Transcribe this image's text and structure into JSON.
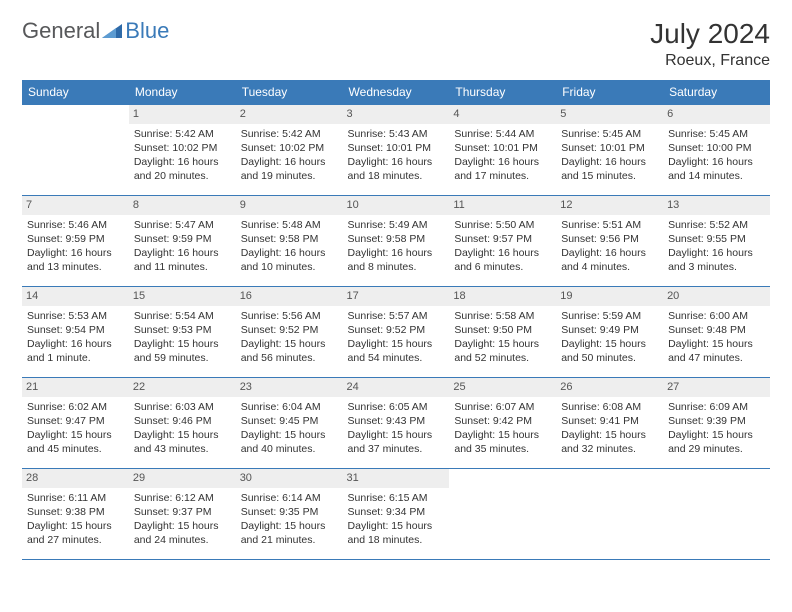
{
  "brand": {
    "part1": "General",
    "part2": "Blue"
  },
  "title": "July 2024",
  "location": "Roeux, France",
  "colors": {
    "header_bg": "#3a7ab8",
    "daynum_bg": "#eeeeee",
    "border": "#3a7ab8",
    "text": "#333333",
    "logo_gray": "#57585a"
  },
  "weekdays": [
    "Sunday",
    "Monday",
    "Tuesday",
    "Wednesday",
    "Thursday",
    "Friday",
    "Saturday"
  ],
  "weeks": [
    [
      null,
      {
        "n": "1",
        "sr": "Sunrise: 5:42 AM",
        "ss": "Sunset: 10:02 PM",
        "d1": "Daylight: 16 hours",
        "d2": "and 20 minutes."
      },
      {
        "n": "2",
        "sr": "Sunrise: 5:42 AM",
        "ss": "Sunset: 10:02 PM",
        "d1": "Daylight: 16 hours",
        "d2": "and 19 minutes."
      },
      {
        "n": "3",
        "sr": "Sunrise: 5:43 AM",
        "ss": "Sunset: 10:01 PM",
        "d1": "Daylight: 16 hours",
        "d2": "and 18 minutes."
      },
      {
        "n": "4",
        "sr": "Sunrise: 5:44 AM",
        "ss": "Sunset: 10:01 PM",
        "d1": "Daylight: 16 hours",
        "d2": "and 17 minutes."
      },
      {
        "n": "5",
        "sr": "Sunrise: 5:45 AM",
        "ss": "Sunset: 10:01 PM",
        "d1": "Daylight: 16 hours",
        "d2": "and 15 minutes."
      },
      {
        "n": "6",
        "sr": "Sunrise: 5:45 AM",
        "ss": "Sunset: 10:00 PM",
        "d1": "Daylight: 16 hours",
        "d2": "and 14 minutes."
      }
    ],
    [
      {
        "n": "7",
        "sr": "Sunrise: 5:46 AM",
        "ss": "Sunset: 9:59 PM",
        "d1": "Daylight: 16 hours",
        "d2": "and 13 minutes."
      },
      {
        "n": "8",
        "sr": "Sunrise: 5:47 AM",
        "ss": "Sunset: 9:59 PM",
        "d1": "Daylight: 16 hours",
        "d2": "and 11 minutes."
      },
      {
        "n": "9",
        "sr": "Sunrise: 5:48 AM",
        "ss": "Sunset: 9:58 PM",
        "d1": "Daylight: 16 hours",
        "d2": "and 10 minutes."
      },
      {
        "n": "10",
        "sr": "Sunrise: 5:49 AM",
        "ss": "Sunset: 9:58 PM",
        "d1": "Daylight: 16 hours",
        "d2": "and 8 minutes."
      },
      {
        "n": "11",
        "sr": "Sunrise: 5:50 AM",
        "ss": "Sunset: 9:57 PM",
        "d1": "Daylight: 16 hours",
        "d2": "and 6 minutes."
      },
      {
        "n": "12",
        "sr": "Sunrise: 5:51 AM",
        "ss": "Sunset: 9:56 PM",
        "d1": "Daylight: 16 hours",
        "d2": "and 4 minutes."
      },
      {
        "n": "13",
        "sr": "Sunrise: 5:52 AM",
        "ss": "Sunset: 9:55 PM",
        "d1": "Daylight: 16 hours",
        "d2": "and 3 minutes."
      }
    ],
    [
      {
        "n": "14",
        "sr": "Sunrise: 5:53 AM",
        "ss": "Sunset: 9:54 PM",
        "d1": "Daylight: 16 hours",
        "d2": "and 1 minute."
      },
      {
        "n": "15",
        "sr": "Sunrise: 5:54 AM",
        "ss": "Sunset: 9:53 PM",
        "d1": "Daylight: 15 hours",
        "d2": "and 59 minutes."
      },
      {
        "n": "16",
        "sr": "Sunrise: 5:56 AM",
        "ss": "Sunset: 9:52 PM",
        "d1": "Daylight: 15 hours",
        "d2": "and 56 minutes."
      },
      {
        "n": "17",
        "sr": "Sunrise: 5:57 AM",
        "ss": "Sunset: 9:52 PM",
        "d1": "Daylight: 15 hours",
        "d2": "and 54 minutes."
      },
      {
        "n": "18",
        "sr": "Sunrise: 5:58 AM",
        "ss": "Sunset: 9:50 PM",
        "d1": "Daylight: 15 hours",
        "d2": "and 52 minutes."
      },
      {
        "n": "19",
        "sr": "Sunrise: 5:59 AM",
        "ss": "Sunset: 9:49 PM",
        "d1": "Daylight: 15 hours",
        "d2": "and 50 minutes."
      },
      {
        "n": "20",
        "sr": "Sunrise: 6:00 AM",
        "ss": "Sunset: 9:48 PM",
        "d1": "Daylight: 15 hours",
        "d2": "and 47 minutes."
      }
    ],
    [
      {
        "n": "21",
        "sr": "Sunrise: 6:02 AM",
        "ss": "Sunset: 9:47 PM",
        "d1": "Daylight: 15 hours",
        "d2": "and 45 minutes."
      },
      {
        "n": "22",
        "sr": "Sunrise: 6:03 AM",
        "ss": "Sunset: 9:46 PM",
        "d1": "Daylight: 15 hours",
        "d2": "and 43 minutes."
      },
      {
        "n": "23",
        "sr": "Sunrise: 6:04 AM",
        "ss": "Sunset: 9:45 PM",
        "d1": "Daylight: 15 hours",
        "d2": "and 40 minutes."
      },
      {
        "n": "24",
        "sr": "Sunrise: 6:05 AM",
        "ss": "Sunset: 9:43 PM",
        "d1": "Daylight: 15 hours",
        "d2": "and 37 minutes."
      },
      {
        "n": "25",
        "sr": "Sunrise: 6:07 AM",
        "ss": "Sunset: 9:42 PM",
        "d1": "Daylight: 15 hours",
        "d2": "and 35 minutes."
      },
      {
        "n": "26",
        "sr": "Sunrise: 6:08 AM",
        "ss": "Sunset: 9:41 PM",
        "d1": "Daylight: 15 hours",
        "d2": "and 32 minutes."
      },
      {
        "n": "27",
        "sr": "Sunrise: 6:09 AM",
        "ss": "Sunset: 9:39 PM",
        "d1": "Daylight: 15 hours",
        "d2": "and 29 minutes."
      }
    ],
    [
      {
        "n": "28",
        "sr": "Sunrise: 6:11 AM",
        "ss": "Sunset: 9:38 PM",
        "d1": "Daylight: 15 hours",
        "d2": "and 27 minutes."
      },
      {
        "n": "29",
        "sr": "Sunrise: 6:12 AM",
        "ss": "Sunset: 9:37 PM",
        "d1": "Daylight: 15 hours",
        "d2": "and 24 minutes."
      },
      {
        "n": "30",
        "sr": "Sunrise: 6:14 AM",
        "ss": "Sunset: 9:35 PM",
        "d1": "Daylight: 15 hours",
        "d2": "and 21 minutes."
      },
      {
        "n": "31",
        "sr": "Sunrise: 6:15 AM",
        "ss": "Sunset: 9:34 PM",
        "d1": "Daylight: 15 hours",
        "d2": "and 18 minutes."
      },
      null,
      null,
      null
    ]
  ]
}
